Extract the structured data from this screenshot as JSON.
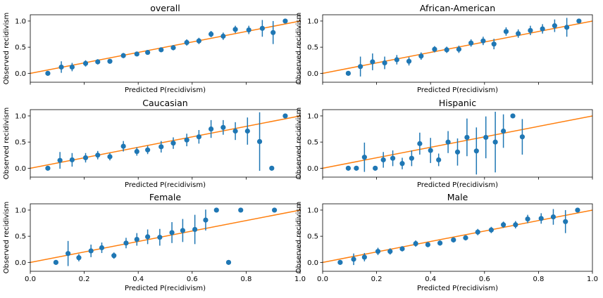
{
  "chart_data": [
    {
      "type": "scatter",
      "title": "overall",
      "xlabel": "Predicted P(recidivism)",
      "ylabel": "Observed recidivism",
      "xlim": [
        0,
        1
      ],
      "ylim": [
        -0.17,
        1.12
      ],
      "x_ticks": [
        "0.0",
        "0.2",
        "0.4",
        "0.6",
        "0.8",
        "1.0"
      ],
      "y_ticks": [
        "0.0",
        "0.5",
        "1.0"
      ],
      "show_x_tick_labels": false,
      "reference_line": [
        [
          0,
          0
        ],
        [
          1,
          1
        ]
      ],
      "x": [
        0.065,
        0.115,
        0.155,
        0.205,
        0.25,
        0.295,
        0.345,
        0.395,
        0.435,
        0.485,
        0.53,
        0.58,
        0.625,
        0.67,
        0.715,
        0.76,
        0.81,
        0.86,
        0.9,
        0.945
      ],
      "y": [
        0.0,
        0.12,
        0.12,
        0.19,
        0.22,
        0.23,
        0.34,
        0.37,
        0.4,
        0.45,
        0.49,
        0.59,
        0.62,
        0.75,
        0.71,
        0.84,
        0.83,
        0.86,
        0.78,
        1.0
      ],
      "err": [
        0.0,
        0.11,
        0.08,
        0.06,
        0.05,
        0.04,
        0.05,
        0.04,
        0.04,
        0.04,
        0.05,
        0.06,
        0.06,
        0.06,
        0.07,
        0.07,
        0.08,
        0.16,
        0.22,
        0.0
      ]
    },
    {
      "type": "scatter",
      "title": "African-American",
      "xlabel": "Predicted P(recidivism)",
      "ylabel": "Observed recidivism",
      "xlim": [
        0,
        1
      ],
      "ylim": [
        -0.17,
        1.12
      ],
      "x_ticks": [
        "0.0",
        "0.2",
        "0.4",
        "0.6",
        "0.8",
        "1.0"
      ],
      "y_ticks": [
        "0.0",
        "0.5",
        "1.0"
      ],
      "show_x_tick_labels": false,
      "reference_line": [
        [
          0,
          0
        ],
        [
          1,
          1
        ]
      ],
      "x": [
        0.095,
        0.14,
        0.185,
        0.23,
        0.275,
        0.32,
        0.365,
        0.415,
        0.46,
        0.505,
        0.55,
        0.595,
        0.635,
        0.68,
        0.725,
        0.77,
        0.815,
        0.86,
        0.905,
        0.95
      ],
      "y": [
        0.0,
        0.13,
        0.22,
        0.2,
        0.26,
        0.23,
        0.33,
        0.46,
        0.45,
        0.46,
        0.58,
        0.62,
        0.56,
        0.8,
        0.76,
        0.82,
        0.85,
        0.91,
        0.88,
        1.0
      ],
      "err": [
        0.0,
        0.19,
        0.16,
        0.12,
        0.09,
        0.08,
        0.07,
        0.06,
        0.06,
        0.07,
        0.07,
        0.08,
        0.1,
        0.08,
        0.08,
        0.09,
        0.09,
        0.12,
        0.18,
        0.0
      ]
    },
    {
      "type": "scatter",
      "title": "Caucasian",
      "xlabel": "Predicted P(recidivism)",
      "ylabel": "Observed recidivism",
      "xlim": [
        0,
        1
      ],
      "ylim": [
        -0.17,
        1.12
      ],
      "x_ticks": [
        "0.0",
        "0.2",
        "0.4",
        "0.6",
        "0.8",
        "1.0"
      ],
      "y_ticks": [
        "0.0",
        "0.5",
        "1.0"
      ],
      "show_x_tick_labels": false,
      "reference_line": [
        [
          0,
          0
        ],
        [
          1,
          1
        ]
      ],
      "x": [
        0.065,
        0.11,
        0.155,
        0.205,
        0.25,
        0.295,
        0.345,
        0.395,
        0.435,
        0.485,
        0.53,
        0.58,
        0.625,
        0.67,
        0.715,
        0.76,
        0.805,
        0.85,
        0.895,
        0.945
      ],
      "y": [
        0.0,
        0.15,
        0.16,
        0.2,
        0.25,
        0.22,
        0.42,
        0.32,
        0.35,
        0.41,
        0.48,
        0.54,
        0.6,
        0.75,
        0.78,
        0.71,
        0.71,
        0.51,
        0.0,
        1.0
      ],
      "err": [
        0.0,
        0.16,
        0.13,
        0.09,
        0.08,
        0.07,
        0.1,
        0.08,
        0.08,
        0.11,
        0.11,
        0.12,
        0.13,
        0.17,
        0.14,
        0.17,
        0.26,
        0.56,
        0.0,
        0.0
      ]
    },
    {
      "type": "scatter",
      "title": "Hispanic",
      "xlabel": "Predicted P(recidivism)",
      "ylabel": "Observed recidivism",
      "xlim": [
        0,
        1
      ],
      "ylim": [
        -0.17,
        1.12
      ],
      "x_ticks": [
        "0.0",
        "0.2",
        "0.4",
        "0.6",
        "0.8",
        "1.0"
      ],
      "y_ticks": [
        "0.0",
        "0.5",
        "1.0"
      ],
      "show_x_tick_labels": false,
      "reference_line": [
        [
          0,
          0
        ],
        [
          1,
          1
        ]
      ],
      "x": [
        0.095,
        0.125,
        0.155,
        0.195,
        0.225,
        0.26,
        0.295,
        0.33,
        0.36,
        0.4,
        0.43,
        0.465,
        0.5,
        0.535,
        0.57,
        0.605,
        0.64,
        0.67,
        0.705,
        0.74
      ],
      "y": [
        0.0,
        0.0,
        0.21,
        0.0,
        0.16,
        0.19,
        0.09,
        0.19,
        0.47,
        0.34,
        0.16,
        0.5,
        0.31,
        0.59,
        0.33,
        0.59,
        0.5,
        0.71,
        1.0,
        0.6
      ],
      "err": [
        0.0,
        0.0,
        0.28,
        0.0,
        0.15,
        0.15,
        0.11,
        0.15,
        0.21,
        0.24,
        0.12,
        0.21,
        0.26,
        0.36,
        0.45,
        0.4,
        0.58,
        0.32,
        0.0,
        0.34
      ]
    },
    {
      "type": "scatter",
      "title": "Female",
      "xlabel": "Predicted P(recidivism)",
      "ylabel": "Observed recidivism",
      "xlim": [
        0,
        1
      ],
      "ylim": [
        -0.17,
        1.12
      ],
      "x_ticks": [
        "0.0",
        "0.2",
        "0.4",
        "0.6",
        "0.8",
        "1.0"
      ],
      "y_ticks": [
        "0.0",
        "0.5",
        "1.0"
      ],
      "show_x_tick_labels": true,
      "reference_line": [
        [
          0,
          0
        ],
        [
          1,
          1
        ]
      ],
      "x": [
        0.095,
        0.14,
        0.18,
        0.225,
        0.265,
        0.31,
        0.355,
        0.395,
        0.435,
        0.48,
        0.525,
        0.565,
        0.61,
        0.65,
        0.69,
        0.735,
        0.78,
        0.905
      ],
      "y": [
        0.0,
        0.17,
        0.09,
        0.22,
        0.28,
        0.13,
        0.37,
        0.44,
        0.49,
        0.48,
        0.57,
        0.61,
        0.63,
        0.81,
        1.0,
        0.0,
        1.0,
        1.0
      ],
      "err": [
        0.0,
        0.24,
        0.07,
        0.12,
        0.1,
        0.06,
        0.1,
        0.12,
        0.14,
        0.16,
        0.2,
        0.22,
        0.28,
        0.2,
        0.0,
        0.0,
        0.0,
        0.0
      ]
    },
    {
      "type": "scatter",
      "title": "Male",
      "xlabel": "Predicted P(recidivism)",
      "ylabel": "Observed recidivism",
      "xlim": [
        0,
        1
      ],
      "ylim": [
        -0.17,
        1.12
      ],
      "x_ticks": [
        "0.0",
        "0.2",
        "0.4",
        "0.6",
        "0.8",
        "1.0"
      ],
      "y_ticks": [
        "0.0",
        "0.5",
        "1.0"
      ],
      "show_x_tick_labels": true,
      "reference_line": [
        [
          0,
          0
        ],
        [
          1,
          1
        ]
      ],
      "x": [
        0.065,
        0.115,
        0.155,
        0.205,
        0.25,
        0.295,
        0.345,
        0.39,
        0.435,
        0.485,
        0.53,
        0.575,
        0.625,
        0.67,
        0.715,
        0.76,
        0.81,
        0.855,
        0.9,
        0.945
      ],
      "y": [
        0.0,
        0.06,
        0.1,
        0.21,
        0.21,
        0.26,
        0.36,
        0.34,
        0.37,
        0.43,
        0.47,
        0.58,
        0.62,
        0.72,
        0.72,
        0.83,
        0.84,
        0.87,
        0.78,
        1.0
      ],
      "err": [
        0.0,
        0.11,
        0.08,
        0.07,
        0.06,
        0.05,
        0.06,
        0.05,
        0.05,
        0.05,
        0.05,
        0.06,
        0.06,
        0.06,
        0.07,
        0.08,
        0.1,
        0.15,
        0.22,
        0.0
      ]
    }
  ]
}
